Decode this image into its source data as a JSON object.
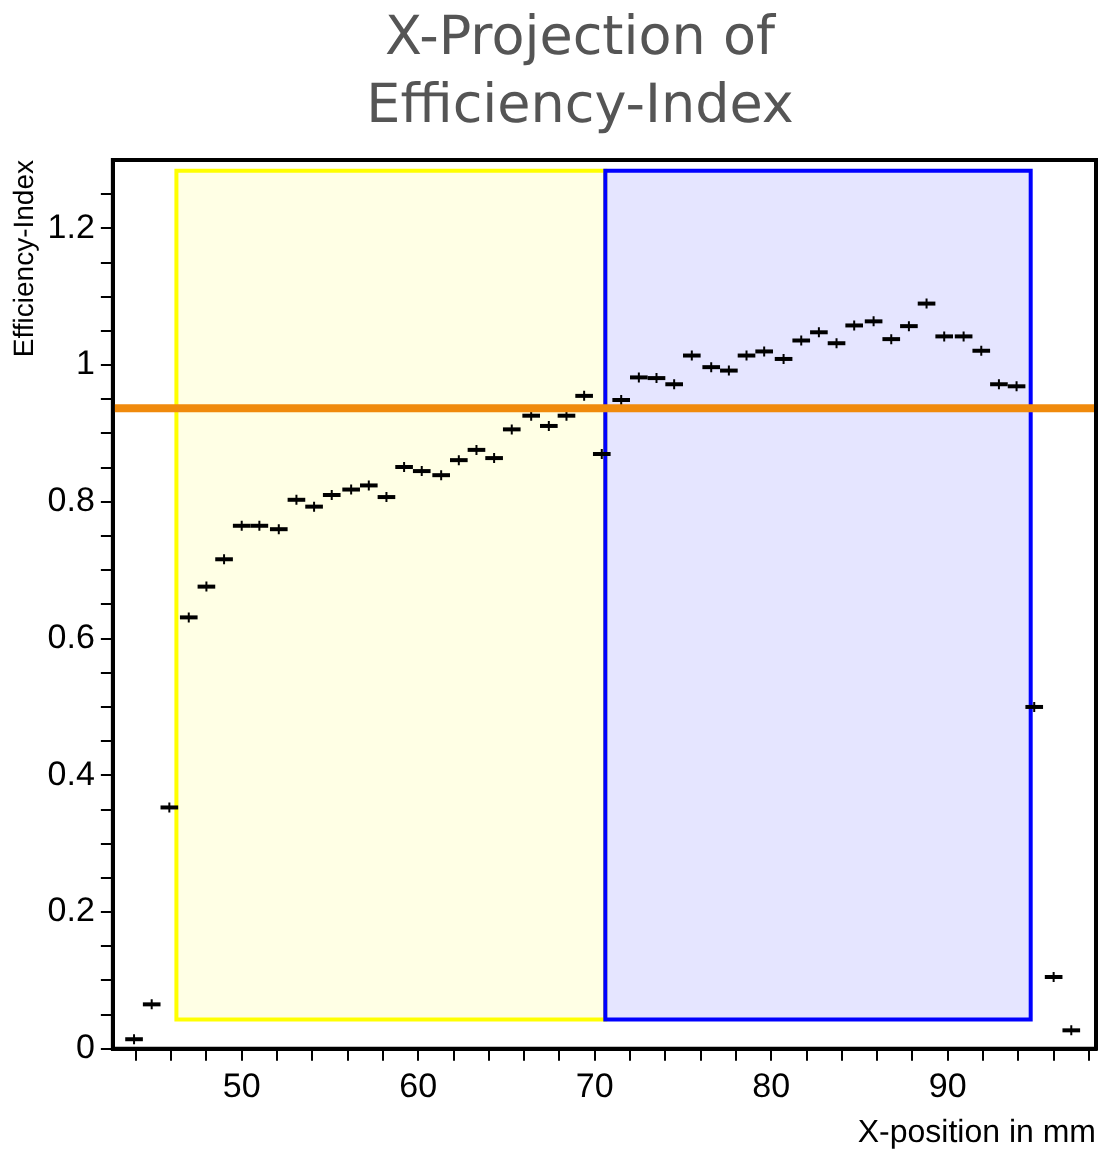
{
  "chart_data": {
    "type": "scatter",
    "title": "X-Projection of Efficiency-Index",
    "xlabel": "X-position in mm",
    "ylabel": "Efficiency-Index",
    "series": [
      {
        "color": "#000000",
        "x": [
          43.9,
          44.9,
          45.9,
          47.0,
          48.0,
          49.0,
          50.0,
          51.0,
          52.1,
          53.1,
          54.1,
          55.1,
          56.2,
          57.2,
          58.2,
          59.2,
          60.2,
          61.3,
          62.3,
          63.3,
          64.3,
          65.3,
          66.4,
          67.4,
          68.4,
          69.4,
          70.4,
          71.5,
          72.5,
          73.5,
          74.5,
          75.5,
          76.6,
          77.6,
          78.6,
          79.6,
          80.7,
          81.7,
          82.7,
          83.7,
          84.7,
          85.8,
          86.8,
          87.8,
          88.8,
          89.8,
          90.9,
          91.9,
          92.9,
          93.9,
          94.9,
          96.0,
          97.0
        ],
        "values": [
          0.014,
          0.065,
          0.353,
          0.631,
          0.676,
          0.716,
          0.765,
          0.765,
          0.76,
          0.803,
          0.793,
          0.81,
          0.818,
          0.824,
          0.807,
          0.851,
          0.845,
          0.839,
          0.861,
          0.876,
          0.864,
          0.906,
          0.926,
          0.911,
          0.926,
          0.955,
          0.87,
          0.949,
          0.982,
          0.981,
          0.972,
          1.014,
          0.997,
          0.992,
          1.014,
          1.02,
          1.009,
          1.036,
          1.048,
          1.032,
          1.058,
          1.064,
          1.038,
          1.057,
          1.09,
          1.042,
          1.042,
          1.021,
          0.972,
          0.969,
          0.5,
          0.105,
          0.027
        ],
        "xerrors": [
          0.5,
          0.5,
          0.5,
          0.5,
          0.5,
          0.5,
          0.5,
          0.5,
          0.5,
          0.5,
          0.5,
          0.5,
          0.5,
          0.5,
          0.5,
          0.5,
          0.5,
          0.5,
          0.5,
          0.5,
          0.5,
          0.5,
          0.5,
          0.5,
          0.5,
          0.5,
          0.5,
          0.5,
          0.5,
          0.5,
          0.5,
          0.5,
          0.5,
          0.5,
          0.5,
          0.5,
          0.5,
          0.5,
          0.5,
          0.5,
          0.5,
          0.5,
          0.5,
          0.5,
          0.5,
          0.5,
          0.5,
          0.5,
          0.5,
          0.5,
          0.5,
          0.5,
          0.5
        ]
      }
    ],
    "marker": "cross",
    "xlim": [
      42.7,
      98.4
    ],
    "xticks": [
      {
        "value": 44,
        "label": null
      },
      {
        "value": 46,
        "label": null
      },
      {
        "value": 48,
        "label": null
      },
      50,
      {
        "value": 52,
        "label": null
      },
      {
        "value": 54,
        "label": null
      },
      {
        "value": 56,
        "label": null
      },
      {
        "value": 58,
        "label": null
      },
      60,
      {
        "value": 62,
        "label": null
      },
      {
        "value": 64,
        "label": null
      },
      {
        "value": 66,
        "label": null
      },
      {
        "value": 68,
        "label": null
      },
      70,
      {
        "value": 72,
        "label": null
      },
      {
        "value": 74,
        "label": null
      },
      {
        "value": 76,
        "label": null
      },
      {
        "value": 78,
        "label": null
      },
      80,
      {
        "value": 82,
        "label": null
      },
      {
        "value": 84,
        "label": null
      },
      {
        "value": 86,
        "label": null
      },
      {
        "value": 88,
        "label": null
      },
      90,
      {
        "value": 92,
        "label": null
      },
      {
        "value": 94,
        "label": null
      },
      {
        "value": 96,
        "label": null
      },
      {
        "value": 98,
        "label": null
      }
    ],
    "ylim": [
      0,
      1.3
    ],
    "yticks": [
      0,
      {
        "value": 0.05,
        "label": null
      },
      {
        "value": 0.1,
        "label": null
      },
      {
        "value": 0.15,
        "label": null
      },
      0.2,
      {
        "value": 0.25,
        "label": null
      },
      {
        "value": 0.3,
        "label": null
      },
      {
        "value": 0.35,
        "label": null
      },
      0.4,
      {
        "value": 0.45,
        "label": null
      },
      {
        "value": 0.5,
        "label": null
      },
      {
        "value": 0.55,
        "label": null
      },
      0.6,
      {
        "value": 0.65,
        "label": null
      },
      {
        "value": 0.7,
        "label": null
      },
      {
        "value": 0.75,
        "label": null
      },
      0.8,
      {
        "value": 0.85,
        "label": null
      },
      {
        "value": 0.9,
        "label": null
      },
      {
        "value": 0.95,
        "label": null
      },
      1,
      {
        "value": 1.05,
        "label": null
      },
      {
        "value": 1.1,
        "label": null
      },
      {
        "value": 1.15,
        "label": null
      },
      1.2,
      {
        "value": 1.25,
        "label": null
      }
    ],
    "ref_lines": [
      {
        "axis": "y",
        "value": 0.937,
        "color": "#f08a0c"
      }
    ],
    "bands": [
      {
        "axis": "x",
        "from": 46.3,
        "to": 70.6,
        "color": "#ffff00"
      },
      {
        "axis": "x",
        "from": 70.6,
        "to": 94.7,
        "color": "#0000ff"
      }
    ],
    "grid": false,
    "legend": false
  }
}
